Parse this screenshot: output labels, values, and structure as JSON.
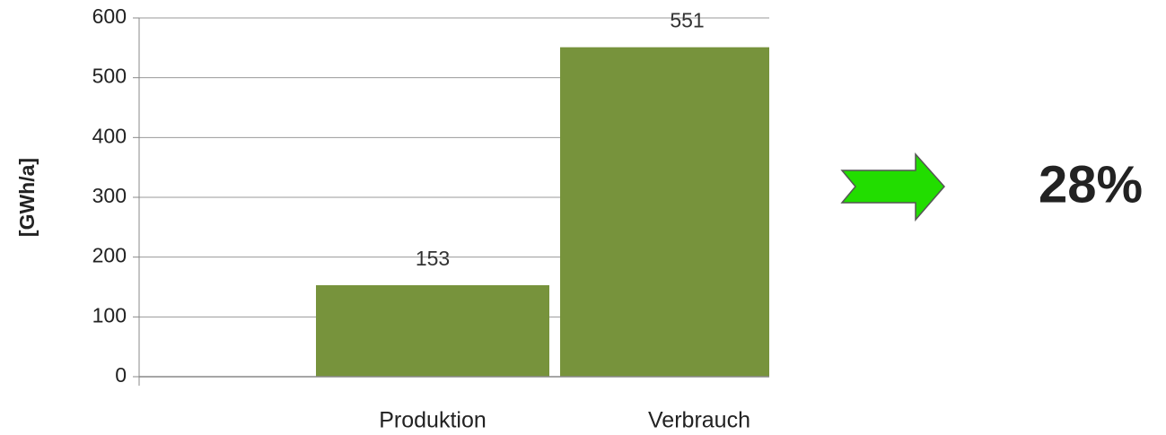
{
  "chart_data": {
    "type": "bar",
    "y_label": "[GWh/a]",
    "categories": [
      null,
      "Produktion",
      "Verbrauch"
    ],
    "values": [
      null,
      153,
      551
    ],
    "color": "#77933c",
    "ylim": [
      0,
      600
    ],
    "yticks": [
      0,
      100,
      200,
      300,
      400,
      500,
      600
    ],
    "grid": true,
    "annotation": "28%"
  }
}
